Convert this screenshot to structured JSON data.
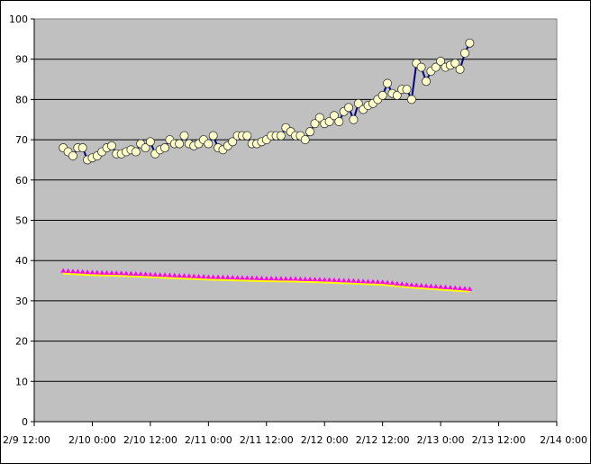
{
  "chart_data": {
    "type": "line",
    "title": "",
    "xlabel": "",
    "ylabel": "",
    "ylim": [
      0,
      100
    ],
    "yticks": [
      0,
      10,
      20,
      30,
      40,
      50,
      60,
      70,
      80,
      90,
      100
    ],
    "x_axis": {
      "type": "datetime",
      "min": "2/9 12:00",
      "max": "2/14 0:00",
      "tick_labels": [
        "2/9 12:00",
        "2/10 0:00",
        "2/10 12:00",
        "2/11 0:00",
        "2/11 12:00",
        "2/12 0:00",
        "2/12 12:00",
        "2/13 0:00",
        "2/13 12:00",
        "2/14 0:00"
      ]
    },
    "grid": {
      "horizontal": true,
      "vertical": false
    },
    "legend": "none",
    "colors": {
      "plot_background": "#c0c0c0",
      "gridline": "#000000",
      "series1_line": "#000080",
      "series1_marker_fill": "#ffffcc",
      "series1_marker_edge": "#333333",
      "series2_line": "#ffff00",
      "series2_marker": "#ff00ff"
    },
    "series": [
      {
        "marker": "circle",
        "points": [
          [
            "2/9 18:00",
            68
          ],
          [
            "2/9 19:00",
            67
          ],
          [
            "2/9 20:00",
            66
          ],
          [
            "2/9 21:00",
            68
          ],
          [
            "2/9 22:00",
            68
          ],
          [
            "2/9 23:00",
            65
          ],
          [
            "2/10 0:00",
            65.5
          ],
          [
            "2/10 1:00",
            66
          ],
          [
            "2/10 2:00",
            67
          ],
          [
            "2/10 3:00",
            68
          ],
          [
            "2/10 4:00",
            68.5
          ],
          [
            "2/10 5:00",
            66.5
          ],
          [
            "2/10 6:00",
            66.5
          ],
          [
            "2/10 7:00",
            67
          ],
          [
            "2/10 8:00",
            67.5
          ],
          [
            "2/10 9:00",
            67
          ],
          [
            "2/10 10:00",
            69
          ],
          [
            "2/10 11:00",
            68
          ],
          [
            "2/10 12:00",
            69.5
          ],
          [
            "2/10 13:00",
            66.5
          ],
          [
            "2/10 14:00",
            67.5
          ],
          [
            "2/10 15:00",
            68
          ],
          [
            "2/10 16:00",
            70
          ],
          [
            "2/10 17:00",
            69
          ],
          [
            "2/10 18:00",
            69
          ],
          [
            "2/10 19:00",
            71
          ],
          [
            "2/10 20:00",
            69
          ],
          [
            "2/10 21:00",
            68.5
          ],
          [
            "2/10 22:00",
            69
          ],
          [
            "2/10 23:00",
            70
          ],
          [
            "2/11 0:00",
            69
          ],
          [
            "2/11 1:00",
            71
          ],
          [
            "2/11 2:00",
            68
          ],
          [
            "2/11 3:00",
            67.5
          ],
          [
            "2/11 4:00",
            68.5
          ],
          [
            "2/11 5:00",
            69.5
          ],
          [
            "2/11 6:00",
            71
          ],
          [
            "2/11 7:00",
            71
          ],
          [
            "2/11 8:00",
            71
          ],
          [
            "2/11 9:00",
            69
          ],
          [
            "2/11 10:00",
            69
          ],
          [
            "2/11 11:00",
            69.5
          ],
          [
            "2/11 12:00",
            70
          ],
          [
            "2/11 13:00",
            71
          ],
          [
            "2/11 14:00",
            71
          ],
          [
            "2/11 15:00",
            71
          ],
          [
            "2/11 16:00",
            73
          ],
          [
            "2/11 17:00",
            72
          ],
          [
            "2/11 18:00",
            71
          ],
          [
            "2/11 19:00",
            71
          ],
          [
            "2/11 20:00",
            70
          ],
          [
            "2/11 21:00",
            72
          ],
          [
            "2/11 22:00",
            74
          ],
          [
            "2/11 23:00",
            75.5
          ],
          [
            "2/12 0:00",
            74
          ],
          [
            "2/12 1:00",
            74.5
          ],
          [
            "2/12 2:00",
            76
          ],
          [
            "2/12 3:00",
            74.5
          ],
          [
            "2/12 4:00",
            77
          ],
          [
            "2/12 5:00",
            78
          ],
          [
            "2/12 6:00",
            75
          ],
          [
            "2/12 7:00",
            79
          ],
          [
            "2/12 8:00",
            77.5
          ],
          [
            "2/12 9:00",
            78.5
          ],
          [
            "2/12 10:00",
            79
          ],
          [
            "2/12 11:00",
            80
          ],
          [
            "2/12 12:00",
            81
          ],
          [
            "2/12 13:00",
            84
          ],
          [
            "2/12 14:00",
            81.5
          ],
          [
            "2/12 15:00",
            81
          ],
          [
            "2/12 16:00",
            82.5
          ],
          [
            "2/12 17:00",
            82.5
          ],
          [
            "2/12 18:00",
            80
          ],
          [
            "2/12 19:00",
            89
          ],
          [
            "2/12 20:00",
            88
          ],
          [
            "2/12 21:00",
            84.5
          ],
          [
            "2/12 22:00",
            87
          ],
          [
            "2/12 23:00",
            88
          ],
          [
            "2/13 0:00",
            89.5
          ],
          [
            "2/13 1:00",
            88
          ],
          [
            "2/13 2:00",
            88.5
          ],
          [
            "2/13 3:00",
            89
          ],
          [
            "2/13 4:00",
            87.5
          ],
          [
            "2/13 5:00",
            91.5
          ],
          [
            "2/13 6:00",
            94
          ]
        ]
      },
      {
        "marker": "triangle",
        "points": [
          [
            "2/9 18:00",
            37
          ],
          [
            "2/10 0:00",
            36.6
          ],
          [
            "2/10 6:00",
            36.4
          ],
          [
            "2/10 12:00",
            36.1
          ],
          [
            "2/10 18:00",
            35.8
          ],
          [
            "2/11 0:00",
            35.5
          ],
          [
            "2/11 6:00",
            35.3
          ],
          [
            "2/11 12:00",
            35.1
          ],
          [
            "2/11 18:00",
            35
          ],
          [
            "2/12 0:00",
            34.8
          ],
          [
            "2/12 6:00",
            34.5
          ],
          [
            "2/12 12:00",
            34.2
          ],
          [
            "2/12 18:00",
            33.5
          ],
          [
            "2/13 0:00",
            33
          ],
          [
            "2/13 6:00",
            32.5
          ]
        ]
      }
    ]
  }
}
